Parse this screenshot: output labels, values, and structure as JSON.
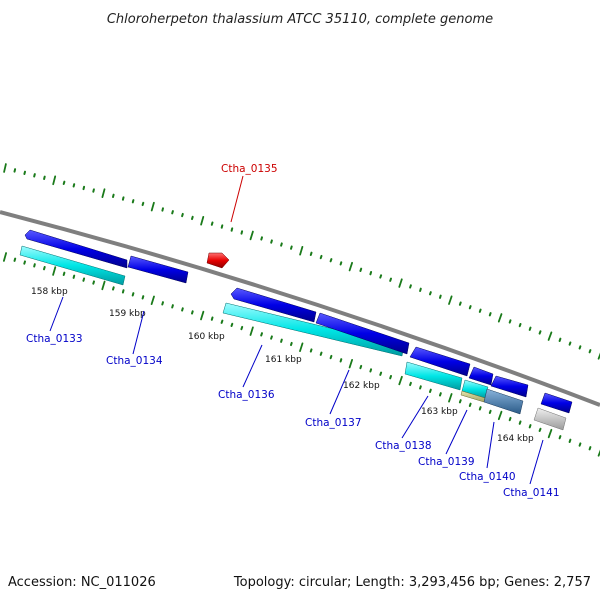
{
  "title": "Chloroherpeton thalassium ATCC 35110, complete genome",
  "footer": {
    "accession": "Accession: NC_011026",
    "summary": "Topology: circular; Length: 3,293,456 bp; Genes: 2,757"
  },
  "kbp_labels": [
    "158 kbp",
    "159 kbp",
    "160 kbp",
    "161 kbp",
    "162 kbp",
    "163 kbp",
    "164 kbp"
  ],
  "genes": [
    {
      "name": "Ctha_0133",
      "color": "#0000c8"
    },
    {
      "name": "Ctha_0134",
      "color": "#0000c8"
    },
    {
      "name": "Ctha_0135",
      "color": "#cc0000"
    },
    {
      "name": "Ctha_0136",
      "color": "#0000c8"
    },
    {
      "name": "Ctha_0137",
      "color": "#0000c8"
    },
    {
      "name": "Ctha_0138",
      "color": "#0000c8"
    },
    {
      "name": "Ctha_0139",
      "color": "#0000c8"
    },
    {
      "name": "Ctha_0140",
      "color": "#0000c8"
    },
    {
      "name": "Ctha_0141",
      "color": "#0000c8"
    }
  ],
  "colors": {
    "backbone": "#7f7f7f",
    "forward_cds": "#0000e6",
    "reverse_cds": "#e60000",
    "feature_cyan": "#00e6e6",
    "feature_tan": "#c8c87a",
    "feature_steel": "#4682b4",
    "feature_gray": "#bfbfbf",
    "ticks": "#1a7a1a"
  }
}
